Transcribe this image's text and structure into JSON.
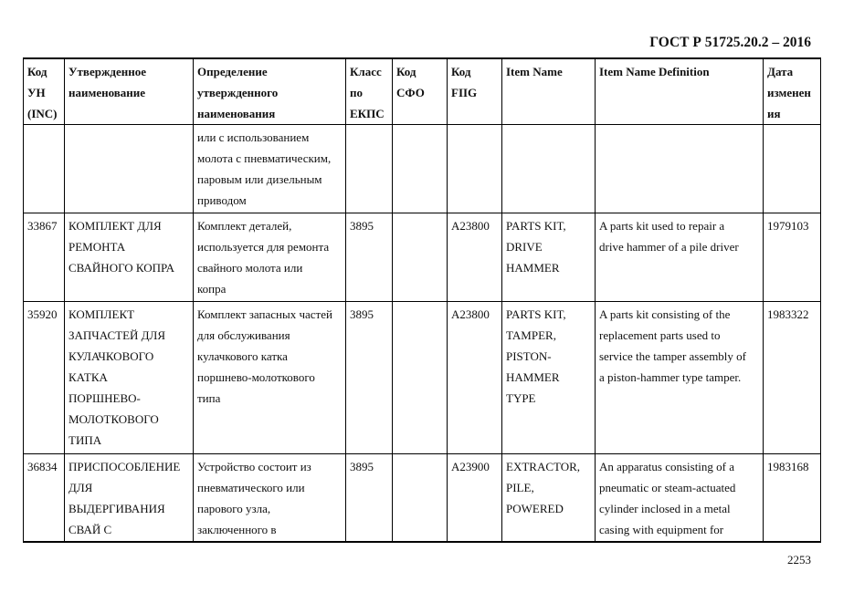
{
  "document": {
    "code": "ГОСТ Р 51725.20.2 – 2016",
    "page_number": "2253"
  },
  "table": {
    "headers": [
      [
        "Код",
        "УН",
        "(INC)"
      ],
      [
        "Утвержденное",
        "наименование"
      ],
      [
        "Определение",
        "утвержденного",
        "наименования"
      ],
      [
        "Класс",
        "по",
        "ЕКПС"
      ],
      [
        "Код",
        "СФО"
      ],
      [
        "Код",
        "FIIG"
      ],
      [
        "Item Name"
      ],
      [
        "Item Name Definition"
      ],
      [
        "Дата",
        "изменен",
        "ия"
      ]
    ],
    "rows": [
      [
        [],
        [],
        [
          "или с использованием",
          "молота с пневматическим,",
          "паровым или дизельным",
          "приводом"
        ],
        [],
        [],
        [],
        [],
        [],
        []
      ],
      [
        [
          "33867"
        ],
        [
          "КОМПЛЕКТ ДЛЯ",
          "РЕМОНТА",
          "СВАЙНОГО КОПРА"
        ],
        [
          "Комплект деталей,",
          "используется для ремонта",
          "свайного молота или",
          "копра"
        ],
        [
          "3895"
        ],
        [],
        [
          "A23800"
        ],
        [
          "PARTS KIT,",
          "DRIVE",
          "HAMMER"
        ],
        [
          "A parts kit used to repair a",
          "drive hammer of a pile driver"
        ],
        [
          "1979103"
        ]
      ],
      [
        [
          "35920"
        ],
        [
          "КОМПЛЕКТ",
          "ЗАПЧАСТЕЙ ДЛЯ",
          "КУЛАЧКОВОГО",
          "КАТКА",
          "ПОРШНЕВО-",
          "МОЛОТКОВОГО",
          "ТИПА"
        ],
        [
          "Комплект запасных частей",
          "для обслуживания",
          "кулачкового катка",
          "поршнево-молоткового",
          "типа"
        ],
        [
          "3895"
        ],
        [],
        [
          "A23800"
        ],
        [
          "PARTS KIT,",
          "TAMPER,",
          "PISTON-",
          "HAMMER",
          "TYPE"
        ],
        [
          "A parts kit consisting of the",
          "replacement parts used to",
          "service the tamper assembly of",
          "a piston-hammer type tamper."
        ],
        [
          "1983322"
        ]
      ],
      [
        [
          "36834"
        ],
        [
          "ПРИСПОСОБЛЕНИЕ",
          "ДЛЯ",
          "ВЫДЕРГИВАНИЯ",
          "СВАЙ С"
        ],
        [
          "Устройство состоит из",
          "пневматического или",
          "парового узла,",
          "заключенного в"
        ],
        [
          "3895"
        ],
        [],
        [
          "A23900"
        ],
        [
          "EXTRACTOR,",
          "PILE,",
          "POWERED"
        ],
        [
          "An apparatus consisting of a",
          "pneumatic or steam-actuated",
          "cylinder inclosed in a metal",
          "casing with equipment for"
        ],
        [
          "1983168"
        ]
      ]
    ]
  }
}
